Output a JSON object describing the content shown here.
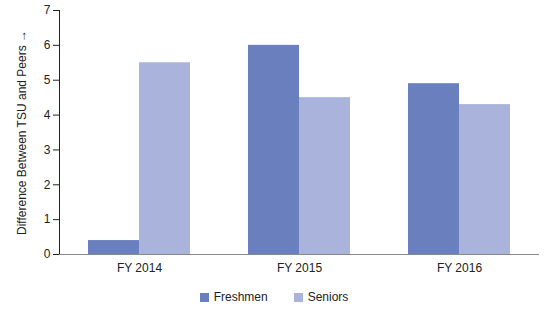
{
  "chart_data": {
    "type": "bar",
    "categories": [
      "FY 2014",
      "FY 2015",
      "FY 2016"
    ],
    "series": [
      {
        "name": "Freshmen",
        "color": "#6a7fbd",
        "values": [
          0.4,
          6.0,
          4.9
        ]
      },
      {
        "name": "Seniors",
        "color": "#aab3dc",
        "values": [
          5.5,
          4.5,
          4.3
        ]
      }
    ],
    "y_label": "Difference Between TSU and Peers",
    "ylim": [
      0,
      7
    ],
    "yticks": [
      0,
      1,
      2,
      3,
      4,
      5,
      6,
      7
    ],
    "grid": false,
    "legend": "bottom"
  }
}
